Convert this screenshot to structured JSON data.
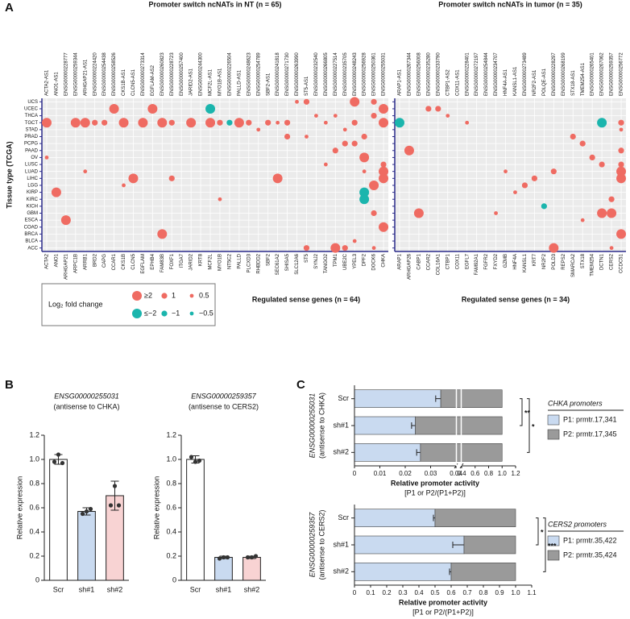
{
  "panel_labels": [
    "A",
    "B",
    "C"
  ],
  "chart_data": [
    {
      "type": "dot_matrix",
      "title": "Promoter switch ncNATs in NT (n = 65)",
      "x_label": "Regulated sense genes (n = 64)",
      "y_label": "Tissue type (TCGA)",
      "pos_color": "#ef6b62",
      "neg_color": "#1bb5ad",
      "ncnats": [
        "ACTA2-AS1",
        "ANO1-AS1",
        "ENSG00000228777",
        "ENSG00000259344",
        "ARHGAP21-AS1",
        "ENSG00000224420",
        "ENSG00000254438",
        "ENSG00000258526",
        "CKS1B-AS1",
        "CLCN5-AS1",
        "ENSG00000273314",
        "EGFLAM-AS2",
        "ENSG00000260823",
        "ENSG00000228723",
        "ENSG00000257400",
        "JARID2-AS1",
        "ENSG00000244300",
        "MCF2L-AS1",
        "MYO1B-AS1",
        "ENSG00000226504",
        "PALLD-AS1",
        "ENSG00000248623",
        "ENSG00000254789",
        "SBF2-AS1",
        "ENSG00000241818",
        "ENSG00000271730",
        "ENSG00000263990",
        "ST5-AS1",
        "ENSG00000232540",
        "ENSG00000266805",
        "ENSG00000227514",
        "ENSG00000235705",
        "ENSG00000248243",
        "ENSG00000256928",
        "ENSG00000250361",
        "ENSG00000255031"
      ],
      "categories": [
        "ACTA2",
        "ANO1",
        "ARHGAP21",
        "ARPC1B",
        "ARRB1",
        "BRD2",
        "CAPG",
        "CCAR1",
        "CKS1B",
        "CLCN5",
        "EGFLAM",
        "EPHB4",
        "FAM83B",
        "FOXF1",
        "ITGA7",
        "JARID2",
        "KRT8",
        "MCF2L",
        "MYO1B",
        "NT5C2",
        "PALLD",
        "PLCXD3",
        "RHBDD2",
        "SBF2",
        "SEC61A2",
        "SHISA5",
        "SLC12A6",
        "ST5",
        "SYNJ2",
        "TANGO2",
        "TPM1",
        "UBE2C",
        "YPEL3",
        "DPF2",
        "DOCK6",
        "CHKA"
      ],
      "y_categories": [
        "UCS",
        "UCEC",
        "THCA",
        "TGCT",
        "STAD",
        "PRAD",
        "PCPG",
        "PAAD",
        "OV",
        "LUSC",
        "LUAD",
        "LIHC",
        "LGG",
        "KIRP",
        "KIRC",
        "KICH",
        "GBM",
        "ESCA",
        "COAD",
        "BRCA",
        "BLCA",
        "ACC"
      ],
      "points": [
        {
          "x": "ST5",
          "y": "UCS",
          "value": 1
        },
        {
          "x": "SLC12A6",
          "y": "UCS",
          "value": 0.5
        },
        {
          "x": "YPEL3",
          "y": "UCS",
          "value": 2
        },
        {
          "x": "DOCK6",
          "y": "UCS",
          "value": 1
        },
        {
          "x": "CCAR1",
          "y": "UCEC",
          "value": 2
        },
        {
          "x": "EPHB4",
          "y": "UCEC",
          "value": 2
        },
        {
          "x": "MCF2L",
          "y": "UCEC",
          "value": -2
        },
        {
          "x": "CHKA",
          "y": "UCEC",
          "value": 2
        },
        {
          "x": "SYNJ2",
          "y": "THCA",
          "value": 0.5
        },
        {
          "x": "TPM1",
          "y": "THCA",
          "value": 0.5
        },
        {
          "x": "DOCK6",
          "y": "THCA",
          "value": 1
        },
        {
          "x": "ACTA2",
          "y": "TGCT",
          "value": 2
        },
        {
          "x": "ARPC1B",
          "y": "TGCT",
          "value": 2
        },
        {
          "x": "ARRB1",
          "y": "TGCT",
          "value": 2
        },
        {
          "x": "BRD2",
          "y": "TGCT",
          "value": 1
        },
        {
          "x": "CAPG",
          "y": "TGCT",
          "value": 1
        },
        {
          "x": "CKS1B",
          "y": "TGCT",
          "value": 2
        },
        {
          "x": "EGFLAM",
          "y": "TGCT",
          "value": 2
        },
        {
          "x": "FAM83B",
          "y": "TGCT",
          "value": 2
        },
        {
          "x": "FOXF1",
          "y": "TGCT",
          "value": 1
        },
        {
          "x": "JARID2",
          "y": "TGCT",
          "value": 2
        },
        {
          "x": "MCF2L",
          "y": "TGCT",
          "value": 2
        },
        {
          "x": "MYO1B",
          "y": "TGCT",
          "value": 1
        },
        {
          "x": "NT5C2",
          "y": "TGCT",
          "value": -1
        },
        {
          "x": "PALLD",
          "y": "TGCT",
          "value": 2
        },
        {
          "x": "PLCXD3",
          "y": "TGCT",
          "value": 1
        },
        {
          "x": "SBF2",
          "y": "TGCT",
          "value": 1
        },
        {
          "x": "SEC61A2",
          "y": "TGCT",
          "value": 0.5
        },
        {
          "x": "SHISA5",
          "y": "TGCT",
          "value": 1
        },
        {
          "x": "TANGO2",
          "y": "TGCT",
          "value": 0.5
        },
        {
          "x": "YPEL3",
          "y": "TGCT",
          "value": 1
        },
        {
          "x": "CHKA",
          "y": "TGCT",
          "value": 2
        },
        {
          "x": "RHBDD2",
          "y": "STAD",
          "value": 0.5
        },
        {
          "x": "UBE2C",
          "y": "STAD",
          "value": 0.5
        },
        {
          "x": "SHISA5",
          "y": "PRAD",
          "value": 1
        },
        {
          "x": "ST5",
          "y": "PRAD",
          "value": 0.5
        },
        {
          "x": "DPF2",
          "y": "PRAD",
          "value": 1
        },
        {
          "x": "UBE2C",
          "y": "PCPG",
          "value": 1
        },
        {
          "x": "YPEL3",
          "y": "PCPG",
          "value": 1
        },
        {
          "x": "TPM1",
          "y": "PAAD",
          "value": 1
        },
        {
          "x": "ACTA2",
          "y": "OV",
          "value": 0.5
        },
        {
          "x": "DPF2",
          "y": "OV",
          "value": 2
        },
        {
          "x": "TANGO2",
          "y": "LUSC",
          "value": 0.5
        },
        {
          "x": "CHKA",
          "y": "LUSC",
          "value": 1
        },
        {
          "x": "ARRB1",
          "y": "LUAD",
          "value": 0.5
        },
        {
          "x": "DPF2",
          "y": "LUAD",
          "value": 0.5
        },
        {
          "x": "CHKA",
          "y": "LUAD",
          "value": 2
        },
        {
          "x": "CLCN5",
          "y": "LIHC",
          "value": 2
        },
        {
          "x": "FOXF1",
          "y": "LIHC",
          "value": 1
        },
        {
          "x": "SEC61A2",
          "y": "LIHC",
          "value": 2
        },
        {
          "x": "CHKA",
          "y": "LIHC",
          "value": 2
        },
        {
          "x": "CKS1B",
          "y": "LGG",
          "value": 0.5
        },
        {
          "x": "DOCK6",
          "y": "LGG",
          "value": 2
        },
        {
          "x": "ANO1",
          "y": "KIRP",
          "value": 2
        },
        {
          "x": "DPF2",
          "y": "KIRP",
          "value": -2
        },
        {
          "x": "MYO1B",
          "y": "KIRC",
          "value": 0.5
        },
        {
          "x": "DPF2",
          "y": "KIRC",
          "value": -2
        },
        {
          "x": "DOCK6",
          "y": "GBM",
          "value": 1
        },
        {
          "x": "ARHGAP21",
          "y": "ESCA",
          "value": 2
        },
        {
          "x": "CHKA",
          "y": "COAD",
          "value": 2
        },
        {
          "x": "FAM83B",
          "y": "BRCA",
          "value": 2
        },
        {
          "x": "YPEL3",
          "y": "BLCA",
          "value": 0.5
        },
        {
          "x": "ST5",
          "y": "ACC",
          "value": 1
        },
        {
          "x": "TPM1",
          "y": "ACC",
          "value": 2
        },
        {
          "x": "UBE2C",
          "y": "ACC",
          "value": 1
        },
        {
          "x": "DOCK6",
          "y": "ACC",
          "value": 0.5
        }
      ],
      "legend": {
        "title": "Log₂ fold change",
        "entries": [
          {
            "label": "≥2",
            "value": 2
          },
          {
            "label": "1",
            "value": 1
          },
          {
            "label": "0.5",
            "value": 0.5
          },
          {
            "label": "≤−2",
            "value": -2
          },
          {
            "label": "−1",
            "value": -1
          },
          {
            "label": "−0.5",
            "value": -0.5
          }
        ]
      }
    },
    {
      "type": "dot_matrix",
      "title": "Promoter switch ncNATs in tumor (n = 35)",
      "x_label": "Regulated sense genes (n = 34)",
      "pos_color": "#ef6b62",
      "neg_color": "#1bb5ad",
      "ncnats": [
        "ARAP1-AS1",
        "ENSG00000267344",
        "ENSG00000256008",
        "ENSG00000235280",
        "ENSG00000233790",
        "CTBP1-AS2",
        "COX11-AS1",
        "ENSG00000228401",
        "ENSG00000272197",
        "ENSG00000254844",
        "ENSG00000234707",
        "HNF4A-AS1",
        "KANSL1-AS1",
        "ENSG00000273489",
        "NR2F2-AS1",
        "POLQE-AS1",
        "ENSG00000228297",
        "ENSG00000268199",
        "STX18-AS1",
        "TMEM254-AS1",
        "ENSG00000265401",
        "ENSG00000267062",
        "ENSG00000259357",
        "ENSG00000256772"
      ],
      "categories": [
        "ARAP1",
        "ARHGAP26",
        "CABP1",
        "CCAR2",
        "COL16A1",
        "CTBP1",
        "COX11",
        "EGFL7",
        "FAM92A1",
        "FGFR2",
        "FXYD2",
        "GZMB",
        "HNF4A",
        "KANSL1",
        "KRT7",
        "NR2F2",
        "POLD3",
        "REPS2",
        "SMARCA2",
        "STX18",
        "TMEM254",
        "DCTN1",
        "CERS2",
        "CCDC51"
      ],
      "y_categories": [
        "UCS",
        "UCEC",
        "THCA",
        "TGCT",
        "STAD",
        "PRAD",
        "PCPG",
        "PAAD",
        "OV",
        "LUSC",
        "LUAD",
        "LIHC",
        "LGG",
        "KIRP",
        "KIRC",
        "KICH",
        "GBM",
        "ESCA",
        "COAD",
        "BRCA",
        "BLCA",
        "ACC"
      ],
      "points": [
        {
          "x": "CCAR2",
          "y": "UCEC",
          "value": 1
        },
        {
          "x": "COL16A1",
          "y": "UCEC",
          "value": 1
        },
        {
          "x": "CTBP1",
          "y": "THCA",
          "value": 0.5
        },
        {
          "x": "ARAP1",
          "y": "TGCT",
          "value": -2
        },
        {
          "x": "EGFL7",
          "y": "TGCT",
          "value": 0.5
        },
        {
          "x": "DCTN1",
          "y": "TGCT",
          "value": -2
        },
        {
          "x": "CCDC51",
          "y": "TGCT",
          "value": 1
        },
        {
          "x": "CCDC51",
          "y": "STAD",
          "value": 0.5
        },
        {
          "x": "SMARCA2",
          "y": "PRAD",
          "value": 1
        },
        {
          "x": "STX18",
          "y": "PCPG",
          "value": 1
        },
        {
          "x": "ARHGAP26",
          "y": "PAAD",
          "value": 2
        },
        {
          "x": "CCDC51",
          "y": "PAAD",
          "value": 1
        },
        {
          "x": "TMEM254",
          "y": "OV",
          "value": 1
        },
        {
          "x": "DCTN1",
          "y": "LUSC",
          "value": 1
        },
        {
          "x": "CCDC51",
          "y": "LUSC",
          "value": 1
        },
        {
          "x": "GZMB",
          "y": "LUAD",
          "value": 0.5
        },
        {
          "x": "POLD3",
          "y": "LUAD",
          "value": 1
        },
        {
          "x": "CCDC51",
          "y": "LUAD",
          "value": 2
        },
        {
          "x": "KRT7",
          "y": "LIHC",
          "value": 1
        },
        {
          "x": "CCDC51",
          "y": "LIHC",
          "value": 2
        },
        {
          "x": "KANSL1",
          "y": "LGG",
          "value": 1
        },
        {
          "x": "HNF4A",
          "y": "KIRP",
          "value": 0.5
        },
        {
          "x": "CERS2",
          "y": "KIRC",
          "value": 1
        },
        {
          "x": "NR2F2",
          "y": "KICH",
          "value": -1
        },
        {
          "x": "CABP1",
          "y": "GBM",
          "value": 2
        },
        {
          "x": "FXYD2",
          "y": "GBM",
          "value": 0.5
        },
        {
          "x": "DCTN1",
          "y": "GBM",
          "value": 2
        },
        {
          "x": "CERS2",
          "y": "GBM",
          "value": 2
        },
        {
          "x": "STX18",
          "y": "ESCA",
          "value": 0.5
        },
        {
          "x": "CCDC51",
          "y": "BRCA",
          "value": 2
        },
        {
          "x": "POLD3",
          "y": "ACC",
          "value": 2
        },
        {
          "x": "CERS2",
          "y": "ACC",
          "value": 0.5
        }
      ]
    },
    {
      "type": "bar",
      "title": "ENSG00000255031",
      "subtitle": "(antisense to CHKA)",
      "y_label": "Relative expression",
      "categories": [
        "Scr",
        "sh#1",
        "sh#2"
      ],
      "colors": [
        "#ffffff",
        "#c9daf0",
        "#f8d3d3"
      ],
      "values": [
        1.0,
        0.57,
        0.7
      ],
      "errors": [
        0.04,
        0.03,
        0.12
      ],
      "points": [
        [
          0.98,
          1.04,
          0.97
        ],
        [
          0.55,
          0.57,
          0.59
        ],
        [
          0.62,
          0.78,
          0.62
        ]
      ],
      "ylim": [
        0,
        1.2
      ],
      "yticks": [
        0,
        0.2,
        0.4,
        0.6,
        0.8,
        {
          "value": 1,
          "label": "1.0"
        },
        1.2
      ]
    },
    {
      "type": "bar",
      "title": "ENSG00000259357",
      "subtitle": "(antisense to CERS2)",
      "y_label": "Relative expression",
      "categories": [
        "Scr",
        "sh#1",
        "sh#2"
      ],
      "colors": [
        "#ffffff",
        "#c9daf0",
        "#f8d3d3"
      ],
      "values": [
        1.0,
        0.19,
        0.19
      ],
      "errors": [
        0.03,
        0.01,
        0.01
      ],
      "points": [
        [
          1.02,
          0.98,
          0.99
        ],
        [
          0.18,
          0.19,
          0.19
        ],
        [
          0.19,
          0.19,
          0.2
        ]
      ],
      "ylim": [
        0,
        1.2
      ],
      "yticks": [
        0,
        0.2,
        0.4,
        0.6,
        0.8,
        {
          "value": 1,
          "label": "1.0"
        },
        1.2
      ]
    },
    {
      "type": "stacked_bar_h",
      "y_label": "ENSG00000255031",
      "y_sublabel": "(antisense to CHKA)",
      "x_label": "Relative promoter activity",
      "x_sublabel": "[P1 or P2/(P1+P2)]",
      "categories": [
        "Scr",
        "sh#1",
        "sh#2"
      ],
      "series": [
        {
          "name": "P1: prmtr.17,341",
          "color": "#c9daf0",
          "values": [
            0.034,
            0.024,
            0.026
          ],
          "errors": [
            0.002,
            0.0015,
            0.0015
          ]
        },
        {
          "name": "P2: prmtr.17,345",
          "color": "#9a9a9a",
          "values": [
            0.966,
            0.976,
            0.974
          ]
        }
      ],
      "legend_title": "CHKA promoters",
      "xlim": [
        0,
        1.2
      ],
      "xbreak": [
        0.04,
        0.4
      ],
      "xticks": [
        0,
        0.01,
        0.02,
        0.03,
        0.04,
        0.4,
        0.6,
        0.8,
        {
          "value": 1,
          "label": "1.0"
        },
        1.2
      ],
      "significance": [
        {
          "from": "Scr",
          "to": "sh#1",
          "label": "**"
        },
        {
          "from": "Scr",
          "to": "sh#2",
          "label": "*"
        }
      ]
    },
    {
      "type": "stacked_bar_h",
      "y_label": "ENSG00000259357",
      "y_sublabel": "(antisense to CERS2)",
      "x_label": "Relative promoter activity",
      "x_sublabel": "[P1 or P2/(P1+P2)]",
      "categories": [
        "Scr",
        "sh#1",
        "sh#2"
      ],
      "series": [
        {
          "name": "P1: prmtr.35,422",
          "color": "#c9daf0",
          "values": [
            0.5,
            0.68,
            0.6
          ],
          "errors": [
            0.01,
            0.07,
            0.01
          ]
        },
        {
          "name": "P2: prmtr.35,424",
          "color": "#9a9a9a",
          "values": [
            0.5,
            0.32,
            0.4
          ]
        }
      ],
      "legend_title": "CERS2 promoters",
      "xlim": [
        0,
        1.1
      ],
      "xticks": [
        0,
        0.1,
        0.2,
        0.3,
        0.4,
        0.5,
        0.6,
        0.7,
        0.8,
        0.9,
        {
          "value": 1,
          "label": "1.0"
        },
        1.1
      ],
      "significance": [
        {
          "from": "Scr",
          "to": "sh#1",
          "label": "*"
        },
        {
          "from": "Scr",
          "to": "sh#2",
          "label": "***"
        }
      ]
    }
  ]
}
